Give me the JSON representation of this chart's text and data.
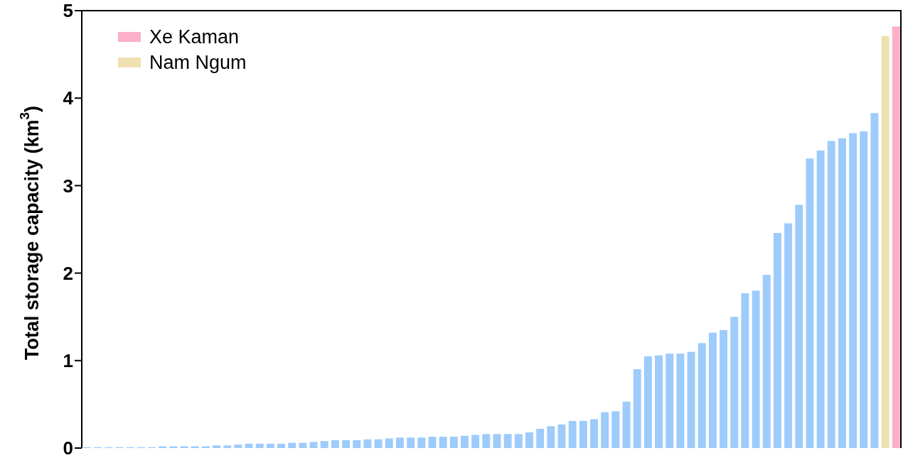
{
  "chart_data": {
    "type": "bar",
    "stacked": true,
    "ylabel": "Total storage capacity (km$^{3}$)",
    "categories": [
      null,
      null,
      null,
      null,
      null,
      null,
      null,
      null,
      null,
      null,
      null,
      null,
      null,
      null,
      null,
      null,
      null,
      null,
      null,
      null,
      null,
      null,
      null,
      null,
      null,
      null,
      null,
      null,
      null,
      null,
      null,
      null,
      null,
      null,
      null,
      null,
      null,
      null,
      null,
      null,
      null,
      null,
      null,
      null,
      null,
      null,
      null,
      null,
      null,
      null,
      null,
      null,
      null,
      null,
      null,
      null,
      null,
      null,
      null,
      null,
      null,
      null,
      null,
      null,
      null,
      null,
      null,
      null,
      null,
      null,
      null,
      null,
      null,
      null,
      null,
      null
    ],
    "series": [
      {
        "color": "#9dcbfb",
        "values": [
          0.01,
          0.01,
          0.01,
          0.01,
          0.01,
          0.01,
          0.01,
          0.02,
          0.02,
          0.02,
          0.02,
          0.02,
          0.03,
          0.03,
          0.04,
          0.05,
          0.05,
          0.05,
          0.05,
          0.06,
          0.06,
          0.07,
          0.08,
          0.09,
          0.09,
          0.09,
          0.1,
          0.1,
          0.11,
          0.12,
          0.12,
          0.12,
          0.13,
          0.13,
          0.13,
          0.14,
          0.15,
          0.16,
          0.16,
          0.16,
          0.16,
          0.18,
          0.22,
          0.25,
          0.27,
          0.31,
          0.31,
          0.33,
          0.41,
          0.42,
          0.53,
          0.9,
          1.05,
          1.06,
          1.08,
          1.08,
          1.1,
          1.2,
          1.32,
          1.35,
          1.5,
          1.77,
          1.8,
          1.98,
          2.46,
          2.57,
          2.78,
          3.31,
          3.4,
          3.51,
          3.54,
          3.6,
          3.62,
          3.83,
          null,
          null
        ]
      },
      {
        "name": "Xe Kaman",
        "color": "#fbb0c8",
        "values": [
          null,
          null,
          null,
          null,
          null,
          null,
          null,
          null,
          null,
          null,
          null,
          null,
          null,
          null,
          null,
          null,
          null,
          null,
          null,
          null,
          null,
          null,
          null,
          null,
          null,
          null,
          null,
          null,
          null,
          null,
          null,
          null,
          null,
          null,
          null,
          null,
          null,
          null,
          null,
          null,
          null,
          null,
          null,
          null,
          null,
          null,
          null,
          null,
          null,
          null,
          null,
          null,
          null,
          null,
          null,
          null,
          null,
          null,
          null,
          null,
          null,
          null,
          null,
          null,
          null,
          null,
          null,
          null,
          null,
          null,
          null,
          null,
          null,
          null,
          null,
          4.82
        ]
      },
      {
        "name": "Nam Ngum",
        "color": "#eee0b0",
        "values": [
          null,
          null,
          null,
          null,
          null,
          null,
          null,
          null,
          null,
          null,
          null,
          null,
          null,
          null,
          null,
          null,
          null,
          null,
          null,
          null,
          null,
          null,
          null,
          null,
          null,
          null,
          null,
          null,
          null,
          null,
          null,
          null,
          null,
          null,
          null,
          null,
          null,
          null,
          null,
          null,
          null,
          null,
          null,
          null,
          null,
          null,
          null,
          null,
          null,
          null,
          null,
          null,
          null,
          null,
          null,
          null,
          null,
          null,
          null,
          null,
          null,
          null,
          null,
          null,
          null,
          null,
          null,
          null,
          null,
          null,
          null,
          null,
          null,
          null,
          4.71,
          null
        ]
      }
    ],
    "ylim": [
      0,
      5
    ],
    "yticks": [
      0,
      1,
      2,
      3,
      4,
      5
    ],
    "grid": false,
    "legend": "top left",
    "tick_labels": "y"
  }
}
